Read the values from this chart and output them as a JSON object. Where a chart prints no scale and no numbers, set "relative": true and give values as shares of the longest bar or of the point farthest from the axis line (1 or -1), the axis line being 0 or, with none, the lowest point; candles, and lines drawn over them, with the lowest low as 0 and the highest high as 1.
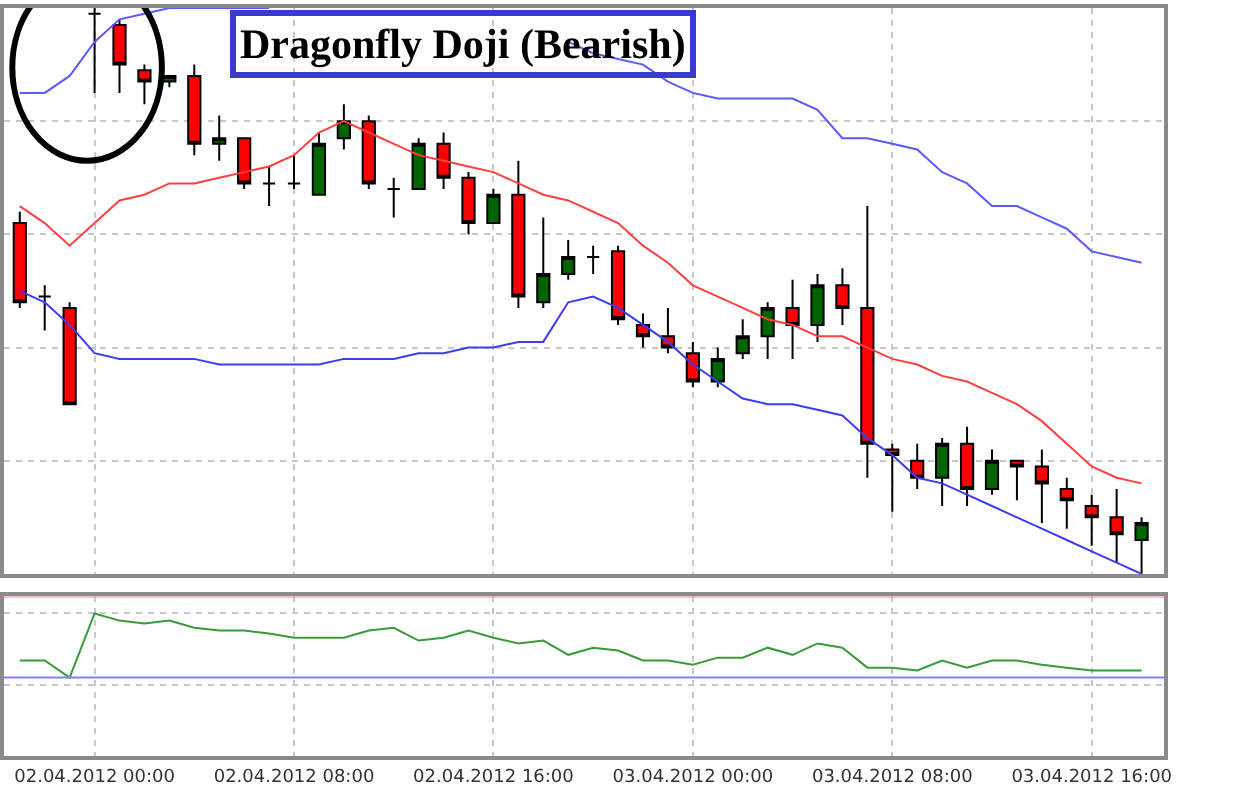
{
  "chart_data": [
    {
      "type": "candlestick",
      "title": "Dragonfly Doji (Bearish)",
      "relative": true,
      "tick_labels": false,
      "grid": true,
      "x": [
        "2012-04-01T21:00",
        "2012-04-01T22:00",
        "2012-04-01T23:00",
        "2012-04-02T00:00",
        "2012-04-02T01:00",
        "2012-04-02T02:00",
        "2012-04-02T03:00",
        "2012-04-02T04:00",
        "2012-04-02T05:00",
        "2012-04-02T06:00",
        "2012-04-02T07:00",
        "2012-04-02T08:00",
        "2012-04-02T09:00",
        "2012-04-02T10:00",
        "2012-04-02T11:00",
        "2012-04-02T12:00",
        "2012-04-02T13:00",
        "2012-04-02T14:00",
        "2012-04-02T15:00",
        "2012-04-02T16:00",
        "2012-04-02T17:00",
        "2012-04-02T18:00",
        "2012-04-02T19:00",
        "2012-04-02T20:00",
        "2012-04-02T21:00",
        "2012-04-02T22:00",
        "2012-04-02T23:00",
        "2012-04-03T00:00",
        "2012-04-03T01:00",
        "2012-04-03T02:00",
        "2012-04-03T03:00",
        "2012-04-03T04:00",
        "2012-04-03T05:00",
        "2012-04-03T06:00",
        "2012-04-03T07:00",
        "2012-04-03T08:00",
        "2012-04-03T09:00",
        "2012-04-03T10:00",
        "2012-04-03T11:00",
        "2012-04-03T12:00",
        "2012-04-03T13:00",
        "2012-04-03T14:00",
        "2012-04-03T15:00",
        "2012-04-03T16:00",
        "2012-04-03T17:00",
        "2012-04-03T18:00"
      ],
      "ohlc": [
        [
          0.62,
          0.64,
          0.47,
          0.48
        ],
        [
          0.49,
          0.51,
          0.43,
          0.49
        ],
        [
          0.47,
          0.48,
          0.3,
          0.3
        ],
        [
          0.99,
          1.0,
          0.85,
          0.99
        ],
        [
          0.97,
          0.98,
          0.85,
          0.9
        ],
        [
          0.89,
          0.9,
          0.83,
          0.87
        ],
        [
          0.87,
          0.88,
          0.86,
          0.88
        ],
        [
          0.88,
          0.9,
          0.74,
          0.76
        ],
        [
          0.76,
          0.81,
          0.73,
          0.77
        ],
        [
          0.77,
          0.77,
          0.68,
          0.69
        ],
        [
          0.69,
          0.72,
          0.65,
          0.69
        ],
        [
          0.69,
          0.74,
          0.68,
          0.69
        ],
        [
          0.67,
          0.78,
          0.67,
          0.76
        ],
        [
          0.77,
          0.83,
          0.75,
          0.8
        ],
        [
          0.8,
          0.81,
          0.68,
          0.69
        ],
        [
          0.68,
          0.7,
          0.63,
          0.68
        ],
        [
          0.68,
          0.77,
          0.68,
          0.76
        ],
        [
          0.76,
          0.78,
          0.68,
          0.7
        ],
        [
          0.7,
          0.71,
          0.6,
          0.62
        ],
        [
          0.62,
          0.68,
          0.62,
          0.67
        ],
        [
          0.67,
          0.73,
          0.47,
          0.49
        ],
        [
          0.48,
          0.63,
          0.47,
          0.53
        ],
        [
          0.53,
          0.59,
          0.52,
          0.56
        ],
        [
          0.56,
          0.58,
          0.53,
          0.56
        ],
        [
          0.57,
          0.58,
          0.44,
          0.45
        ],
        [
          0.44,
          0.46,
          0.4,
          0.42
        ],
        [
          0.42,
          0.47,
          0.39,
          0.4
        ],
        [
          0.39,
          0.41,
          0.33,
          0.34
        ],
        [
          0.34,
          0.4,
          0.33,
          0.38
        ],
        [
          0.39,
          0.45,
          0.38,
          0.42
        ],
        [
          0.42,
          0.48,
          0.38,
          0.47
        ],
        [
          0.47,
          0.52,
          0.38,
          0.44
        ],
        [
          0.44,
          0.53,
          0.41,
          0.51
        ],
        [
          0.51,
          0.54,
          0.44,
          0.47
        ],
        [
          0.47,
          0.65,
          0.17,
          0.23
        ],
        [
          0.22,
          0.23,
          0.11,
          0.21
        ],
        [
          0.2,
          0.23,
          0.15,
          0.17
        ],
        [
          0.17,
          0.24,
          0.12,
          0.23
        ],
        [
          0.23,
          0.26,
          0.12,
          0.15
        ],
        [
          0.15,
          0.22,
          0.14,
          0.2
        ],
        [
          0.2,
          0.2,
          0.13,
          0.19
        ],
        [
          0.19,
          0.22,
          0.09,
          0.16
        ],
        [
          0.15,
          0.17,
          0.08,
          0.13
        ],
        [
          0.12,
          0.14,
          0.05,
          0.1
        ],
        [
          0.1,
          0.15,
          0.02,
          0.07
        ],
        [
          0.06,
          0.1,
          0.0,
          0.09
        ]
      ],
      "colors": [
        "#ff0000",
        "#000000",
        "#ff0000",
        "#000000",
        "#ff0000",
        "#ff0000",
        "#006400",
        "#ff0000",
        "#006400",
        "#ff0000",
        "#000000",
        "#000000",
        "#006400",
        "#006400",
        "#ff0000",
        "#000000",
        "#006400",
        "#ff0000",
        "#ff0000",
        "#006400",
        "#ff0000",
        "#006400",
        "#006400",
        "#000000",
        "#ff0000",
        "#ff0000",
        "#ff0000",
        "#ff0000",
        "#006400",
        "#006400",
        "#006400",
        "#ff0000",
        "#006400",
        "#ff0000",
        "#ff0000",
        "#ff0000",
        "#ff0000",
        "#006400",
        "#ff0000",
        "#006400",
        "#ff0000",
        "#ff0000",
        "#ff0000",
        "#ff0000",
        "#ff0000",
        "#006400"
      ],
      "series": [
        {
          "type": "line",
          "color": "#5a5aff",
          "values": [
            0.85,
            0.85,
            0.88,
            0.94,
            0.98,
            0.99,
            1.0,
            1.0,
            1.0,
            1.0,
            1.0,
            null,
            null,
            null,
            null,
            null,
            null,
            null,
            null,
            null,
            null,
            null,
            0.94,
            0.92,
            0.91,
            0.9,
            0.87,
            0.85,
            0.84,
            0.84,
            0.84,
            0.84,
            0.82,
            0.77,
            0.77,
            0.76,
            0.75,
            0.71,
            0.69,
            0.65,
            0.65,
            0.63,
            0.61,
            0.57,
            0.56,
            0.55
          ]
        },
        {
          "type": "line",
          "color": "#ff4040",
          "values": [
            0.65,
            0.62,
            0.58,
            0.62,
            0.66,
            0.67,
            0.69,
            0.69,
            0.7,
            0.71,
            0.72,
            0.74,
            0.78,
            0.8,
            0.78,
            0.76,
            0.74,
            0.73,
            0.72,
            0.71,
            0.69,
            0.67,
            0.66,
            0.64,
            0.62,
            0.58,
            0.55,
            0.51,
            0.49,
            0.47,
            0.45,
            0.44,
            0.42,
            0.42,
            0.4,
            0.38,
            0.37,
            0.35,
            0.34,
            0.32,
            0.3,
            0.27,
            0.23,
            0.19,
            0.17,
            0.16
          ]
        },
        {
          "type": "line",
          "color": "#3c3cf0",
          "values": [
            0.5,
            0.48,
            0.44,
            0.39,
            0.38,
            0.38,
            0.38,
            0.38,
            0.37,
            0.37,
            0.37,
            0.37,
            0.37,
            0.38,
            0.38,
            0.38,
            0.39,
            0.39,
            0.4,
            0.4,
            0.41,
            0.41,
            0.48,
            0.49,
            0.47,
            0.44,
            0.41,
            0.37,
            0.34,
            0.31,
            0.3,
            0.3,
            0.29,
            0.28,
            0.24,
            0.21,
            0.17,
            0.16,
            0.14,
            0.12,
            0.1,
            0.08,
            0.06,
            0.04,
            0.02,
            0.0
          ]
        }
      ],
      "xlim": [
        "2012-04-01T20:22",
        "2012-04-03T18:54"
      ],
      "xticks": [
        "2012-04-02T00:00",
        "2012-04-02T08:00",
        "2012-04-02T16:00",
        "2012-04-03T00:00",
        "2012-04-03T08:00",
        "2012-04-03T16:00"
      ]
    },
    {
      "type": "line",
      "relative": true,
      "tick_labels": "x",
      "grid": true,
      "x": [
        "2012-04-01T21:00",
        "2012-04-01T22:00",
        "2012-04-01T23:00",
        "2012-04-02T00:00",
        "2012-04-02T01:00",
        "2012-04-02T02:00",
        "2012-04-02T03:00",
        "2012-04-02T04:00",
        "2012-04-02T05:00",
        "2012-04-02T06:00",
        "2012-04-02T07:00",
        "2012-04-02T08:00",
        "2012-04-02T09:00",
        "2012-04-02T10:00",
        "2012-04-02T11:00",
        "2012-04-02T12:00",
        "2012-04-02T13:00",
        "2012-04-02T14:00",
        "2012-04-02T15:00",
        "2012-04-02T16:00",
        "2012-04-02T17:00",
        "2012-04-02T18:00",
        "2012-04-02T19:00",
        "2012-04-02T20:00",
        "2012-04-02T21:00",
        "2012-04-02T22:00",
        "2012-04-02T23:00",
        "2012-04-03T00:00",
        "2012-04-03T01:00",
        "2012-04-03T02:00",
        "2012-04-03T03:00",
        "2012-04-03T04:00",
        "2012-04-03T05:00",
        "2012-04-03T06:00",
        "2012-04-03T07:00",
        "2012-04-03T08:00",
        "2012-04-03T09:00",
        "2012-04-03T10:00",
        "2012-04-03T11:00",
        "2012-04-03T12:00",
        "2012-04-03T13:00",
        "2012-04-03T14:00",
        "2012-04-03T15:00",
        "2012-04-03T16:00",
        "2012-04-03T17:00",
        "2012-04-03T18:00"
      ],
      "series": [
        {
          "color": "#3a9a3a",
          "values": [
            0.67,
            0.67,
            0.55,
            1.0,
            0.95,
            0.93,
            0.95,
            0.9,
            0.88,
            0.88,
            0.86,
            0.83,
            0.83,
            0.83,
            0.88,
            0.9,
            0.81,
            0.83,
            0.88,
            0.83,
            0.79,
            0.81,
            0.71,
            0.76,
            0.74,
            0.67,
            0.67,
            0.64,
            0.69,
            0.69,
            0.76,
            0.71,
            0.79,
            0.76,
            0.62,
            0.62,
            0.6,
            0.67,
            0.62,
            0.67,
            0.67,
            0.64,
            0.62,
            0.6,
            0.6,
            0.6
          ]
        }
      ],
      "ref_lines": [
        {
          "axis": "y",
          "value": 1.12,
          "color": "#ff8080"
        },
        {
          "axis": "y",
          "value": 0.55,
          "color": "#8080ff"
        }
      ],
      "xlim": [
        "2012-04-01T20:22",
        "2012-04-03T18:54"
      ],
      "xticks": [
        {
          "value": "2012-04-02T00:00",
          "label": "02.04.2012 00:00"
        },
        {
          "value": "2012-04-02T08:00",
          "label": "02.04.2012 08:00"
        },
        {
          "value": "2012-04-02T16:00",
          "label": "02.04.2012 16:00"
        },
        {
          "value": "2012-04-03T00:00",
          "label": "03.04.2012 00:00"
        },
        {
          "value": "2012-04-03T08:00",
          "label": "03.04.2012 08:00"
        },
        {
          "value": "2012-04-03T16:00",
          "label": "03.04.2012 16:00"
        }
      ]
    }
  ]
}
